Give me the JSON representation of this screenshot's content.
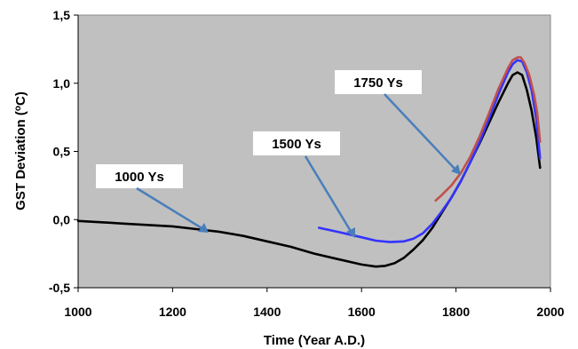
{
  "chart_data": {
    "type": "line",
    "xlabel": "Time (Year A.D.)",
    "ylabel": "GST Deviation (",
    "ylabel_sup": "o",
    "ylabel_tail": "C)",
    "xlim": [
      1000,
      2000
    ],
    "ylim": [
      -0.5,
      1.5
    ],
    "xticks": [
      "1000",
      "1200",
      "1400",
      "1600",
      "1800",
      "2000"
    ],
    "yticks": [
      "-0,5",
      "0,0",
      "0,5",
      "1,0",
      "1,5"
    ],
    "grid": false,
    "plot_background": "#c0c0c0",
    "series": [
      {
        "color": "#000000",
        "x": [
          1000,
          1050,
          1100,
          1150,
          1200,
          1250,
          1300,
          1350,
          1400,
          1450,
          1500,
          1550,
          1600,
          1630,
          1650,
          1670,
          1690,
          1710,
          1730,
          1750,
          1770,
          1790,
          1810,
          1830,
          1850,
          1870,
          1890,
          1910,
          1920,
          1930,
          1940,
          1950,
          1960,
          1970,
          1978
        ],
        "y": [
          -0.01,
          -0.02,
          -0.03,
          -0.04,
          -0.05,
          -0.07,
          -0.09,
          -0.12,
          -0.16,
          -0.2,
          -0.25,
          -0.29,
          -0.33,
          -0.345,
          -0.34,
          -0.32,
          -0.28,
          -0.22,
          -0.15,
          -0.06,
          0.05,
          0.16,
          0.28,
          0.42,
          0.56,
          0.71,
          0.86,
          1.0,
          1.06,
          1.08,
          1.06,
          0.95,
          0.8,
          0.6,
          0.38
        ]
      },
      {
        "color": "#3333ff",
        "x": [
          1510,
          1550,
          1600,
          1630,
          1660,
          1690,
          1710,
          1730,
          1750,
          1770,
          1790,
          1810,
          1830,
          1850,
          1870,
          1890,
          1910,
          1920,
          1930,
          1940,
          1950,
          1960,
          1970,
          1978
        ],
        "y": [
          -0.06,
          -0.09,
          -0.13,
          -0.155,
          -0.165,
          -0.16,
          -0.14,
          -0.1,
          -0.03,
          0.06,
          0.16,
          0.28,
          0.42,
          0.57,
          0.74,
          0.92,
          1.08,
          1.14,
          1.17,
          1.16,
          1.08,
          0.95,
          0.74,
          0.45
        ]
      },
      {
        "color": "#c0504d",
        "x": [
          1757,
          1770,
          1790,
          1810,
          1830,
          1850,
          1870,
          1890,
          1910,
          1920,
          1930,
          1937,
          1945,
          1955,
          1965,
          1972,
          1978
        ],
        "y": [
          0.14,
          0.18,
          0.25,
          0.34,
          0.46,
          0.61,
          0.78,
          0.96,
          1.11,
          1.17,
          1.19,
          1.19,
          1.15,
          1.06,
          0.92,
          0.78,
          0.57
        ]
      }
    ],
    "annotations": [
      {
        "text": "1000 Ys",
        "x": 1270,
        "y": -0.075
      },
      {
        "text": "1500 Ys",
        "x": 1600,
        "y": -0.13
      },
      {
        "text": "1750 Ys",
        "x": 1815,
        "y": 0.31
      }
    ]
  }
}
